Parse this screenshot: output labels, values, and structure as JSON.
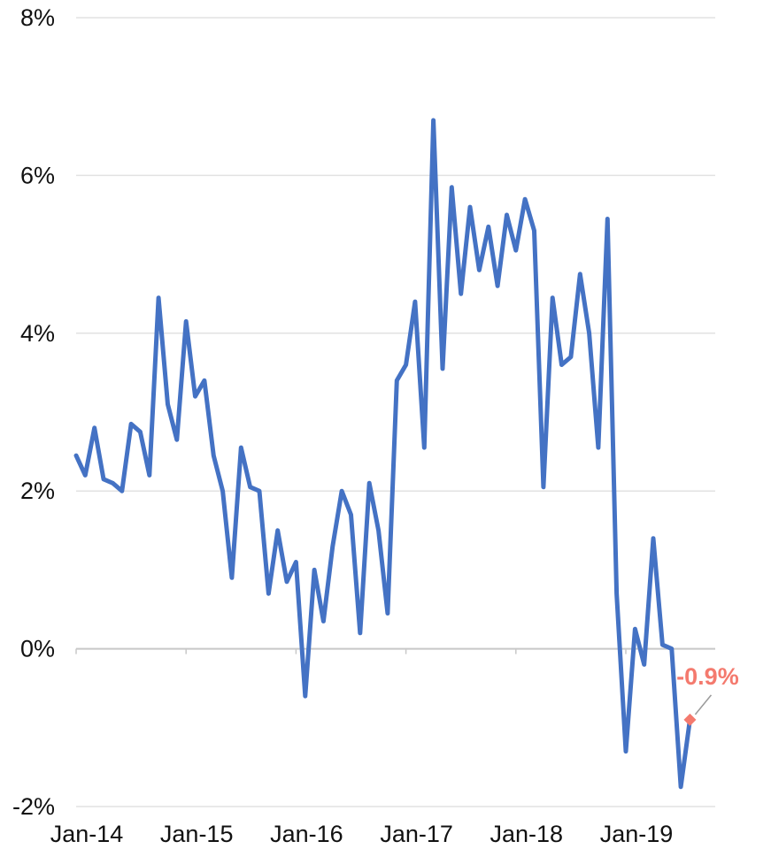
{
  "chart_data": {
    "type": "line",
    "title": "",
    "xlabel": "",
    "ylabel": "",
    "ylim": [
      -2,
      8
    ],
    "yticks": [
      -2,
      0,
      2,
      4,
      6,
      8
    ],
    "ytick_labels": [
      "-2%",
      "0%",
      "2%",
      "4%",
      "6%",
      "8%"
    ],
    "x_tick_labels": [
      "Jan-14",
      "Jan-15",
      "Jan-16",
      "Jan-17",
      "Jan-18",
      "Jan-19"
    ],
    "x_tick_months": [
      0,
      12,
      24,
      36,
      48,
      60
    ],
    "x_start": "Jan-14",
    "grid": "horizontal",
    "line_color": "#4472C4",
    "highlight_color": "#F47A6E",
    "series": [
      {
        "values": [
          2.45,
          2.2,
          2.8,
          2.15,
          2.1,
          2.0,
          2.85,
          2.75,
          2.2,
          4.45,
          3.1,
          2.65,
          4.15,
          3.2,
          3.4,
          2.45,
          2.0,
          0.9,
          2.55,
          2.05,
          2.0,
          0.7,
          1.5,
          0.85,
          1.1,
          -0.6,
          1.0,
          0.35,
          1.3,
          2.0,
          1.7,
          0.2,
          2.1,
          1.5,
          0.45,
          3.4,
          3.6,
          4.4,
          2.55,
          6.7,
          3.55,
          5.85,
          4.5,
          5.6,
          4.8,
          5.35,
          4.6,
          5.5,
          5.05,
          5.7,
          5.3,
          2.05,
          4.45,
          3.6,
          3.7,
          4.75,
          4.0,
          2.55,
          5.45,
          0.7,
          -1.3,
          0.25,
          -0.2,
          1.4,
          0.05,
          0.0,
          -1.75,
          -0.9
        ]
      }
    ],
    "annotations": [
      {
        "label": "-0.9%",
        "month_index": 67,
        "value": -0.9
      }
    ]
  }
}
